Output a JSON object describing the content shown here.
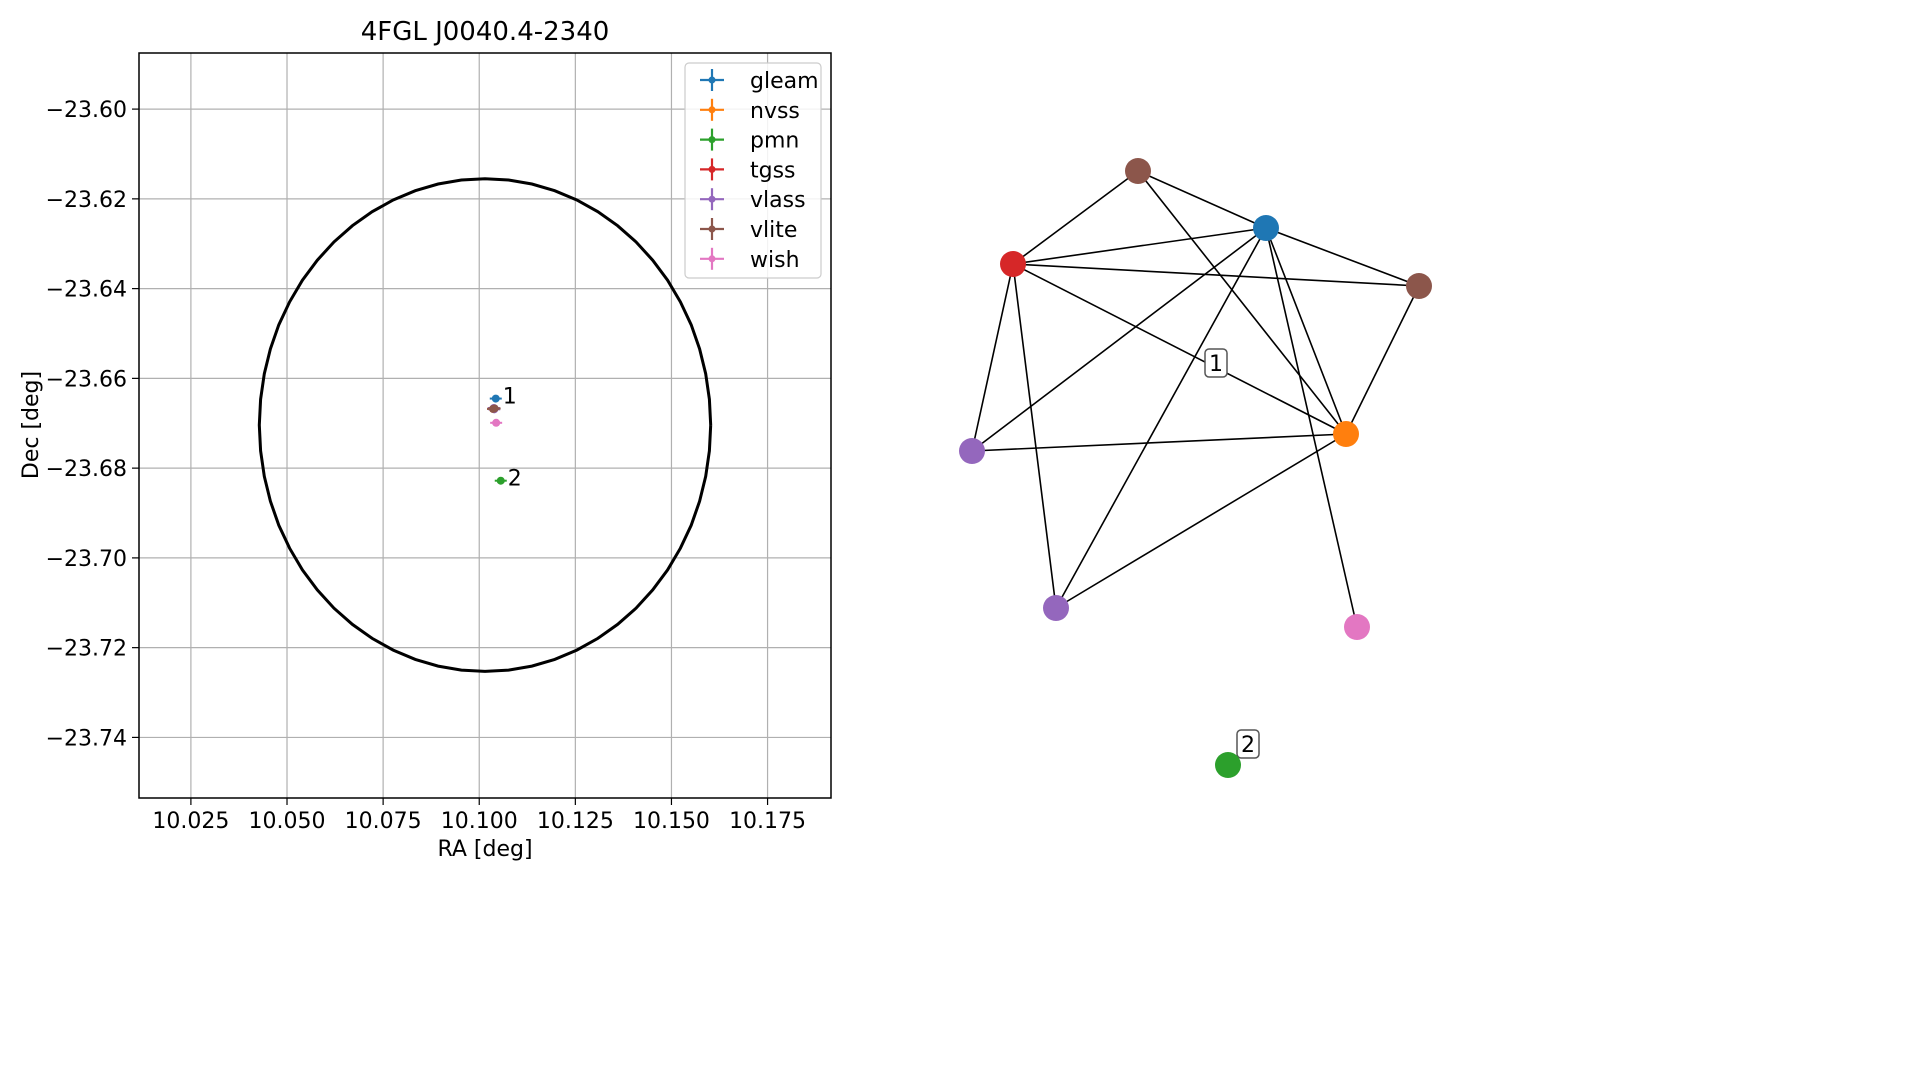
{
  "chart_data": [
    {
      "type": "scatter",
      "title": "4FGL J0040.4-2340",
      "xlabel": "RA [deg]",
      "ylabel": "Dec [deg]",
      "xlim": [
        10.0115,
        10.1915
      ],
      "ylim": [
        -23.7535,
        -23.5875
      ],
      "xticks": [
        10.025,
        10.05,
        10.075,
        10.1,
        10.125,
        10.15,
        10.175
      ],
      "xtick_labels": [
        "10.025",
        "10.050",
        "10.075",
        "10.100",
        "10.125",
        "10.150",
        "10.175"
      ],
      "yticks": [
        -23.6,
        -23.62,
        -23.64,
        -23.66,
        -23.68,
        -23.7,
        -23.72,
        -23.74
      ],
      "ytick_labels": [
        "−23.60",
        "−23.62",
        "−23.64",
        "−23.66",
        "−23.68",
        "−23.70",
        "−23.72",
        "−23.74"
      ],
      "grid": true,
      "legend_position": "top-right",
      "ellipse": {
        "center": [
          10.1015,
          -23.6704
        ],
        "semi_major_ra": 0.0587,
        "semi_minor_dec": 0.0549,
        "color": "#000000"
      },
      "series": [
        {
          "name": "gleam",
          "color": "#1f77b4",
          "x": [
            10.1043
          ],
          "y": [
            -23.6645
          ]
        },
        {
          "name": "nvss",
          "color": "#ff7f0e",
          "x": [
            10.1036
          ],
          "y": [
            -23.6668
          ]
        },
        {
          "name": "pmn",
          "color": "#2ca02c",
          "x": [
            10.1056
          ],
          "y": [
            -23.6828
          ]
        },
        {
          "name": "tgss",
          "color": "#d62728",
          "x": [
            10.1038
          ],
          "y": [
            -23.6667
          ]
        },
        {
          "name": "vlass",
          "color": "#9467bd",
          "x": [
            10.1039,
            10.1038
          ],
          "y": [
            -23.6669,
            -23.6666
          ]
        },
        {
          "name": "vlite",
          "color": "#8c564b",
          "x": [
            10.1036,
            10.104
          ],
          "y": [
            -23.6668,
            -23.6667
          ]
        },
        {
          "name": "wish",
          "color": "#e377c2",
          "x": [
            10.1044
          ],
          "y": [
            -23.6699
          ]
        }
      ],
      "annotations": [
        {
          "text": "1",
          "x": 10.1043,
          "y": -23.6645
        },
        {
          "text": "2",
          "x": 10.1056,
          "y": -23.6828
        }
      ]
    },
    {
      "type": "network",
      "nodes": [
        {
          "id": "n_brown_top",
          "color": "#8c564b",
          "gx": 1138,
          "gy": 171
        },
        {
          "id": "n_blue",
          "color": "#1f77b4",
          "gx": 1266,
          "gy": 228
        },
        {
          "id": "n_red",
          "color": "#d62728",
          "gx": 1013,
          "gy": 264
        },
        {
          "id": "n_brown_right",
          "color": "#8c564b",
          "gx": 1419,
          "gy": 286
        },
        {
          "id": "n_orange",
          "color": "#ff7f0e",
          "gx": 1346,
          "gy": 434
        },
        {
          "id": "n_purple_left",
          "color": "#9467bd",
          "gx": 972,
          "gy": 451
        },
        {
          "id": "n_purple_bottom",
          "color": "#9467bd",
          "gx": 1056,
          "gy": 608
        },
        {
          "id": "n_pink",
          "color": "#e377c2",
          "gx": 1357,
          "gy": 627
        },
        {
          "id": "n_green",
          "color": "#2ca02c",
          "gx": 1228,
          "gy": 765
        }
      ],
      "edges": [
        [
          "n_brown_top",
          "n_blue"
        ],
        [
          "n_brown_top",
          "n_red"
        ],
        [
          "n_brown_top",
          "n_orange"
        ],
        [
          "n_blue",
          "n_red"
        ],
        [
          "n_blue",
          "n_brown_right"
        ],
        [
          "n_blue",
          "n_orange"
        ],
        [
          "n_blue",
          "n_purple_left"
        ],
        [
          "n_blue",
          "n_purple_bottom"
        ],
        [
          "n_blue",
          "n_pink"
        ],
        [
          "n_red",
          "n_brown_right"
        ],
        [
          "n_red",
          "n_orange"
        ],
        [
          "n_red",
          "n_purple_left"
        ],
        [
          "n_red",
          "n_purple_bottom"
        ],
        [
          "n_brown_right",
          "n_orange"
        ],
        [
          "n_orange",
          "n_purple_left"
        ],
        [
          "n_orange",
          "n_purple_bottom"
        ]
      ],
      "labels": [
        {
          "text": "1",
          "gx": 1216,
          "gy": 363
        },
        {
          "text": "2",
          "gx": 1248,
          "gy": 744
        }
      ]
    }
  ]
}
